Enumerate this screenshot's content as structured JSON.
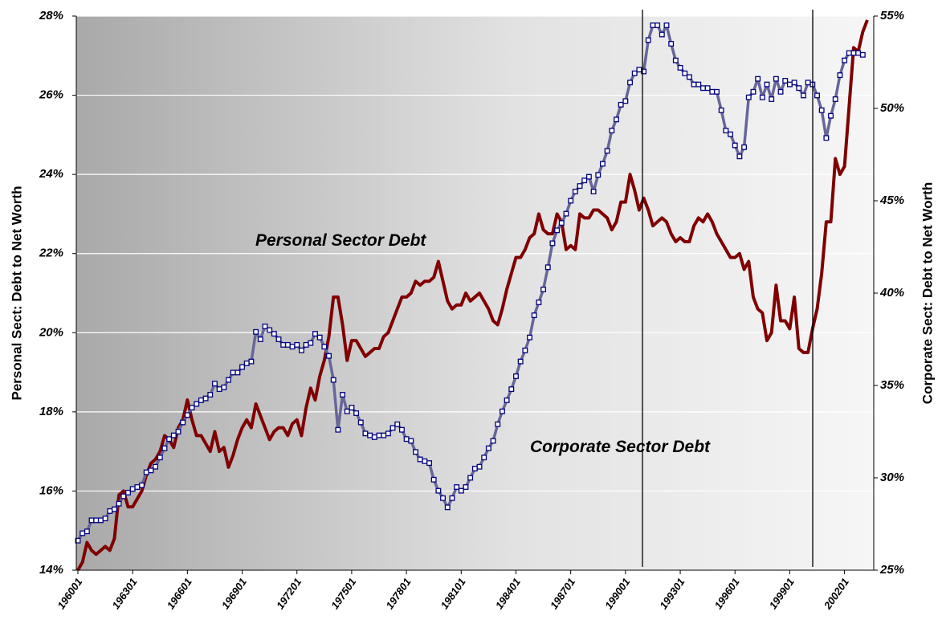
{
  "chart_data": {
    "type": "line",
    "y_label": "Personal Sect: Debt to Net Worth",
    "y2_label": "Corporate Sect: Debt to Net Worth",
    "categories": [
      "196001",
      null,
      null,
      null,
      null,
      null,
      null,
      null,
      null,
      null,
      null,
      null,
      "196301",
      null,
      null,
      null,
      null,
      null,
      null,
      null,
      null,
      null,
      null,
      null,
      "196601",
      null,
      null,
      null,
      null,
      null,
      null,
      null,
      null,
      null,
      null,
      null,
      "196901",
      null,
      null,
      null,
      null,
      null,
      null,
      null,
      null,
      null,
      null,
      null,
      "197201",
      null,
      null,
      null,
      null,
      null,
      null,
      null,
      null,
      null,
      null,
      null,
      "197501",
      null,
      null,
      null,
      null,
      null,
      null,
      null,
      null,
      null,
      null,
      null,
      "197801",
      null,
      null,
      null,
      null,
      null,
      null,
      null,
      null,
      null,
      null,
      null,
      "198101",
      null,
      null,
      null,
      null,
      null,
      null,
      null,
      null,
      null,
      null,
      null,
      "198401",
      null,
      null,
      null,
      null,
      null,
      null,
      null,
      null,
      null,
      null,
      null,
      "198701",
      null,
      null,
      null,
      null,
      null,
      null,
      null,
      null,
      null,
      null,
      null,
      "199001",
      null,
      null,
      null,
      null,
      null,
      null,
      null,
      null,
      null,
      null,
      null,
      "199301",
      null,
      null,
      null,
      null,
      null,
      null,
      null,
      null,
      null,
      null,
      null,
      "199601",
      null,
      null,
      null,
      null,
      null,
      null,
      null,
      null,
      null,
      null,
      null,
      "199901",
      null,
      null,
      null,
      null,
      null,
      null,
      null,
      null,
      null,
      null,
      null,
      "200201",
      null,
      null,
      null,
      null,
      null
    ],
    "series": [
      {
        "name": "Personal Sector Debt",
        "color": "#800000",
        "values": [
          14.0,
          14.2,
          14.7,
          14.5,
          14.4,
          14.5,
          14.6,
          14.5,
          14.8,
          15.9,
          16.0,
          15.6,
          15.6,
          15.8,
          16.0,
          16.4,
          16.7,
          16.8,
          17.0,
          17.4,
          17.3,
          17.1,
          17.6,
          17.8,
          18.3,
          17.8,
          17.4,
          17.4,
          17.2,
          17.0,
          17.5,
          17.0,
          17.1,
          16.6,
          16.9,
          17.3,
          17.6,
          17.8,
          17.6,
          18.2,
          17.9,
          17.6,
          17.3,
          17.5,
          17.6,
          17.6,
          17.4,
          17.7,
          17.8,
          17.4,
          18.1,
          18.6,
          18.3,
          18.9,
          19.3,
          19.9,
          20.9,
          20.9,
          20.2,
          19.3,
          19.8,
          19.8,
          19.6,
          19.4,
          19.5,
          19.6,
          19.6,
          19.9,
          20.0,
          20.3,
          20.6,
          20.9,
          20.9,
          21.0,
          21.3,
          21.2,
          21.3,
          21.3,
          21.4,
          21.8,
          21.3,
          20.8,
          20.6,
          20.7,
          20.7,
          21.0,
          20.8,
          20.9,
          21.0,
          20.8,
          20.6,
          20.3,
          20.2,
          20.6,
          21.1,
          21.5,
          21.9,
          21.9,
          22.1,
          22.4,
          22.5,
          23.0,
          22.6,
          22.5,
          22.5,
          23.0,
          22.8,
          22.1,
          22.2,
          22.1,
          23.0,
          22.9,
          22.9,
          23.1,
          23.1,
          23.0,
          22.9,
          22.6,
          22.8,
          23.3,
          23.3,
          24.0,
          23.6,
          23.1,
          23.4,
          23.1,
          22.7,
          22.8,
          22.9,
          22.8,
          22.5,
          22.3,
          22.4,
          22.3,
          22.3,
          22.7,
          22.9,
          22.8,
          23.0,
          22.8,
          22.5,
          22.3,
          22.1,
          21.9,
          21.9,
          22.0,
          21.6,
          21.8,
          20.9,
          20.6,
          20.5,
          19.8,
          20.0,
          21.2,
          20.3,
          20.3,
          20.1,
          20.9,
          19.6,
          19.5,
          19.5,
          20.1,
          20.6,
          21.5,
          22.8,
          22.8,
          24.4,
          24.0,
          24.2,
          25.7,
          27.2,
          27.1,
          27.6,
          27.9
        ]
      },
      {
        "name": "Corporate Sector Debt",
        "color": "#666699",
        "axis": "y2",
        "values": [
          26.6,
          27.0,
          27.1,
          27.7,
          27.7,
          27.7,
          27.8,
          28.2,
          28.3,
          28.6,
          29.0,
          29.2,
          29.4,
          29.5,
          29.6,
          30.3,
          30.4,
          30.6,
          31.1,
          31.6,
          32.1,
          32.3,
          32.5,
          33.0,
          33.4,
          33.8,
          34.0,
          34.2,
          34.3,
          34.5,
          35.1,
          34.8,
          34.9,
          35.3,
          35.7,
          35.7,
          36.0,
          36.2,
          36.3,
          37.9,
          37.5,
          38.2,
          38.0,
          37.8,
          37.5,
          37.2,
          37.2,
          37.1,
          37.2,
          36.9,
          37.2,
          37.3,
          37.8,
          37.6,
          37.1,
          36.6,
          35.3,
          32.6,
          34.5,
          33.6,
          33.8,
          33.5,
          33.0,
          32.4,
          32.3,
          32.2,
          32.3,
          32.3,
          32.4,
          32.7,
          32.9,
          32.6,
          32.1,
          32.0,
          31.4,
          31.0,
          30.9,
          30.8,
          29.9,
          29.3,
          28.9,
          28.4,
          28.9,
          29.5,
          29.3,
          29.5,
          30.0,
          30.5,
          30.6,
          31.1,
          31.6,
          32.0,
          32.9,
          33.6,
          34.2,
          34.8,
          35.5,
          36.3,
          36.9,
          37.6,
          38.8,
          39.5,
          40.2,
          41.4,
          42.7,
          43.4,
          43.8,
          44.3,
          45.0,
          45.5,
          45.8,
          46.1,
          46.3,
          45.5,
          46.4,
          47.0,
          47.7,
          48.8,
          49.4,
          50.2,
          50.4,
          51.4,
          51.9,
          52.1,
          52.0,
          53.7,
          54.5,
          54.5,
          54.0,
          54.5,
          53.5,
          52.6,
          52.2,
          51.9,
          51.7,
          51.3,
          51.3,
          51.1,
          51.1,
          50.9,
          50.9,
          49.9,
          48.8,
          48.6,
          48.0,
          47.4,
          47.9,
          50.6,
          50.9,
          51.6,
          50.6,
          51.3,
          50.5,
          51.6,
          50.9,
          51.5,
          51.3,
          51.4,
          51.1,
          50.7,
          51.4,
          51.3,
          50.7,
          49.9,
          48.4,
          49.6,
          50.5,
          51.8,
          52.6,
          53.0,
          53.0,
          53.0,
          52.9,
          null
        ]
      }
    ],
    "ylim": [
      14,
      28
    ],
    "yticks": [
      {
        "value": 14,
        "label": "14%"
      },
      {
        "value": 16,
        "label": "16%"
      },
      {
        "value": 18,
        "label": "18%"
      },
      {
        "value": 20,
        "label": "20%"
      },
      {
        "value": 22,
        "label": "22%"
      },
      {
        "value": 24,
        "label": "24%"
      },
      {
        "value": 26,
        "label": "26%"
      },
      {
        "value": 28,
        "label": "28%"
      }
    ],
    "y2lim": [
      25,
      55
    ],
    "y2ticks": [
      {
        "value": 25,
        "label": "25%"
      },
      {
        "value": 30,
        "label": "30%"
      },
      {
        "value": 35,
        "label": "35%"
      },
      {
        "value": 40,
        "label": "40%"
      },
      {
        "value": 45,
        "label": "45%"
      },
      {
        "value": 50,
        "label": "50%"
      },
      {
        "value": 55,
        "label": "55%"
      }
    ],
    "grid": true
  }
}
